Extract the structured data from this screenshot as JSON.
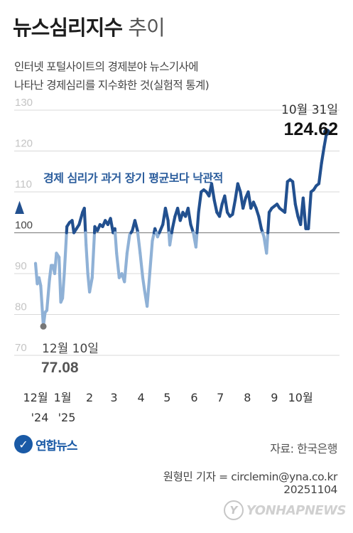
{
  "header": {
    "title_bold": "뉴스심리지수",
    "title_light": "추이",
    "subtitle_line1": "인터넷 포털사이트의 경제분야 뉴스기사에",
    "subtitle_line2": "나타난 경제심리를 지수화한 것(실험적 통계)"
  },
  "chart_data": {
    "type": "line",
    "title": "",
    "ylim": [
      70,
      130
    ],
    "yticks": [
      "130",
      "120",
      "110",
      "100",
      "90",
      "80",
      "70"
    ],
    "baseline": 100,
    "grid": true,
    "x_start": "2024-12-01",
    "x_end": "2025-10-31",
    "month_labels": [
      {
        "date": "2024-12-01",
        "label": "12월",
        "year": "'24"
      },
      {
        "date": "2025-01-01",
        "label": "1월",
        "year": "'25"
      },
      {
        "date": "2025-02-01",
        "label": "2",
        "year": ""
      },
      {
        "date": "2025-03-01",
        "label": "3",
        "year": ""
      },
      {
        "date": "2025-04-01",
        "label": "4",
        "year": ""
      },
      {
        "date": "2025-05-01",
        "label": "5",
        "year": ""
      },
      {
        "date": "2025-06-01",
        "label": "6",
        "year": ""
      },
      {
        "date": "2025-07-01",
        "label": "7",
        "year": ""
      },
      {
        "date": "2025-08-01",
        "label": "8",
        "year": ""
      },
      {
        "date": "2025-09-01",
        "label": "9",
        "year": ""
      },
      {
        "date": "2025-10-01",
        "label": "10월",
        "year": ""
      }
    ],
    "series": [
      {
        "name": "",
        "points": [
          [
            "2024-12-01",
            92.5
          ],
          [
            "2024-12-03",
            87.5
          ],
          [
            "2024-12-05",
            89
          ],
          [
            "2024-12-07",
            87
          ],
          [
            "2024-12-10",
            77.08
          ],
          [
            "2024-12-12",
            80.5
          ],
          [
            "2024-12-14",
            81
          ],
          [
            "2024-12-17",
            88.5
          ],
          [
            "2024-12-19",
            92
          ],
          [
            "2024-12-21",
            92
          ],
          [
            "2024-12-23",
            90
          ],
          [
            "2024-12-25",
            95
          ],
          [
            "2024-12-28",
            94
          ],
          [
            "2024-12-30",
            83
          ],
          [
            "2025-01-01",
            84
          ],
          [
            "2025-01-03",
            90
          ],
          [
            "2025-01-06",
            101.5
          ],
          [
            "2025-01-09",
            102.5
          ],
          [
            "2025-01-12",
            103
          ],
          [
            "2025-01-14",
            100
          ],
          [
            "2025-01-17",
            101
          ],
          [
            "2025-01-20",
            102
          ],
          [
            "2025-01-24",
            105
          ],
          [
            "2025-01-26",
            106
          ],
          [
            "2025-01-28",
            97
          ],
          [
            "2025-01-30",
            90
          ],
          [
            "2025-02-01",
            85.5
          ],
          [
            "2025-02-04",
            89
          ],
          [
            "2025-02-07",
            101.5
          ],
          [
            "2025-02-10",
            100.5
          ],
          [
            "2025-02-13",
            102
          ],
          [
            "2025-02-16",
            101.5
          ],
          [
            "2025-02-19",
            103
          ],
          [
            "2025-02-22",
            102
          ],
          [
            "2025-02-25",
            103.5
          ],
          [
            "2025-02-28",
            100
          ],
          [
            "2025-03-02",
            101
          ],
          [
            "2025-03-04",
            95
          ],
          [
            "2025-03-07",
            89
          ],
          [
            "2025-03-10",
            90
          ],
          [
            "2025-03-13",
            88
          ],
          [
            "2025-03-16",
            95
          ],
          [
            "2025-03-19",
            99.5
          ],
          [
            "2025-03-22",
            100.5
          ],
          [
            "2025-03-25",
            103
          ],
          [
            "2025-03-28",
            100.5
          ],
          [
            "2025-03-31",
            95
          ],
          [
            "2025-04-03",
            89
          ],
          [
            "2025-04-05",
            86
          ],
          [
            "2025-04-08",
            82
          ],
          [
            "2025-04-11",
            90
          ],
          [
            "2025-04-14",
            98
          ],
          [
            "2025-04-17",
            101
          ],
          [
            "2025-04-20",
            99
          ],
          [
            "2025-04-23",
            100.5
          ],
          [
            "2025-04-26",
            102
          ],
          [
            "2025-04-29",
            106
          ],
          [
            "2025-05-02",
            103
          ],
          [
            "2025-05-04",
            97
          ],
          [
            "2025-05-07",
            101
          ],
          [
            "2025-05-10",
            104
          ],
          [
            "2025-05-13",
            106
          ],
          [
            "2025-05-16",
            103
          ],
          [
            "2025-05-19",
            105
          ],
          [
            "2025-05-22",
            104
          ],
          [
            "2025-05-25",
            106
          ],
          [
            "2025-05-28",
            102
          ],
          [
            "2025-05-31",
            100
          ],
          [
            "2025-06-03",
            96.5
          ],
          [
            "2025-06-06",
            105
          ],
          [
            "2025-06-09",
            110
          ],
          [
            "2025-06-12",
            110.5
          ],
          [
            "2025-06-15",
            110
          ],
          [
            "2025-06-18",
            109
          ],
          [
            "2025-06-21",
            112
          ],
          [
            "2025-06-24",
            108
          ],
          [
            "2025-06-27",
            105
          ],
          [
            "2025-06-30",
            104
          ],
          [
            "2025-07-03",
            107
          ],
          [
            "2025-07-06",
            109
          ],
          [
            "2025-07-09",
            105
          ],
          [
            "2025-07-12",
            104
          ],
          [
            "2025-07-15",
            104.5
          ],
          [
            "2025-07-18",
            108
          ],
          [
            "2025-07-21",
            112
          ],
          [
            "2025-07-24",
            110
          ],
          [
            "2025-07-27",
            106
          ],
          [
            "2025-07-30",
            108.5
          ],
          [
            "2025-08-02",
            110
          ],
          [
            "2025-08-05",
            106
          ],
          [
            "2025-08-08",
            107.5
          ],
          [
            "2025-08-11",
            106
          ],
          [
            "2025-08-14",
            104
          ],
          [
            "2025-08-17",
            101
          ],
          [
            "2025-08-20",
            99
          ],
          [
            "2025-08-23",
            95
          ],
          [
            "2025-08-26",
            105
          ],
          [
            "2025-08-29",
            106
          ],
          [
            "2025-09-01",
            106.5
          ],
          [
            "2025-09-04",
            107
          ],
          [
            "2025-09-07",
            106
          ],
          [
            "2025-09-10",
            105.5
          ],
          [
            "2025-09-13",
            105
          ],
          [
            "2025-09-16",
            112.5
          ],
          [
            "2025-09-19",
            113
          ],
          [
            "2025-09-22",
            112.5
          ],
          [
            "2025-09-25",
            107
          ],
          [
            "2025-09-28",
            104
          ],
          [
            "2025-10-01",
            102
          ],
          [
            "2025-10-04",
            108.5
          ],
          [
            "2025-10-07",
            101
          ],
          [
            "2025-10-10",
            101
          ],
          [
            "2025-10-13",
            110
          ],
          [
            "2025-10-16",
            110.5
          ],
          [
            "2025-10-19",
            111.5
          ],
          [
            "2025-10-22",
            112
          ],
          [
            "2025-10-25",
            117
          ],
          [
            "2025-10-28",
            121
          ],
          [
            "2025-10-31",
            124.62
          ]
        ]
      }
    ],
    "annotations": {
      "low_date": "12월 10일",
      "low_value": "77.08",
      "high_date": "10월 31일",
      "high_value": "124.62",
      "note": "경제 심리가 과거 장기 평균보다 낙관적"
    },
    "colors": {
      "line_dark": "#22508f",
      "line_light": "#8fb1d6",
      "point": "#1c3f6e",
      "note": "#2a5c9c"
    }
  },
  "footer": {
    "logo_text": "연합뉴스",
    "source": "자료: 한국은행",
    "credit_line1": "원형민 기자 = circlemin@yna.co.kr",
    "credit_line2": "20251104",
    "watermark": "YONHAPNEWS"
  }
}
